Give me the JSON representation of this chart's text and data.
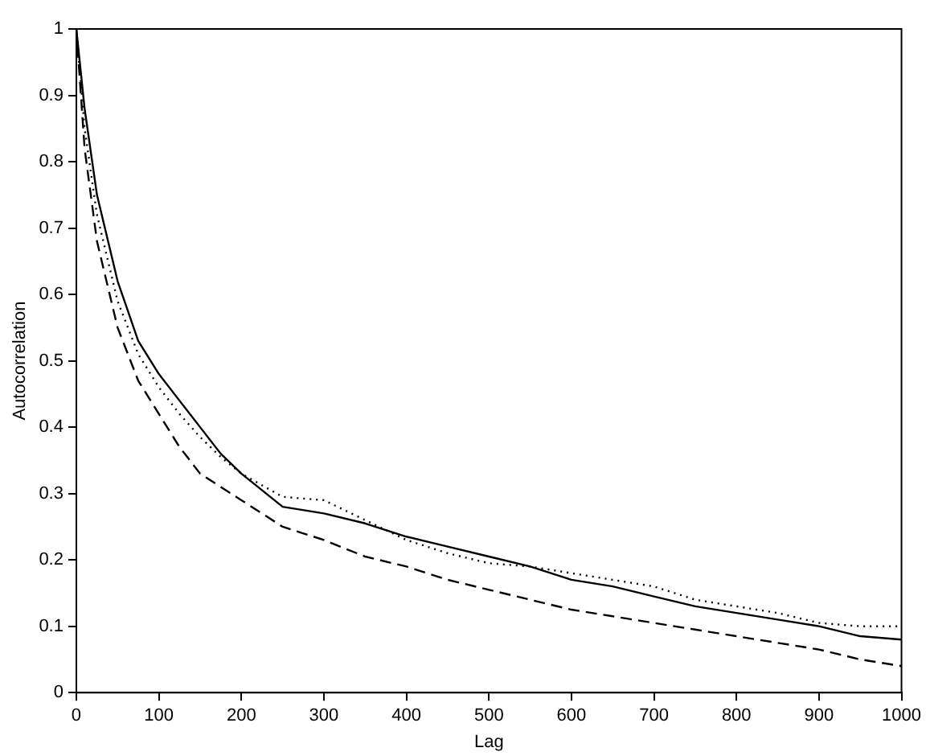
{
  "chart_data": {
    "type": "line",
    "xlabel": "Lag",
    "ylabel": "Autocorrelation",
    "xlim": [
      0,
      1000
    ],
    "ylim": [
      0,
      1
    ],
    "xticks": [
      0,
      100,
      200,
      300,
      400,
      500,
      600,
      700,
      800,
      900,
      1000
    ],
    "yticks": [
      0,
      0.1,
      0.2,
      0.3,
      0.4,
      0.5,
      0.6,
      0.7,
      0.8,
      0.9,
      1
    ],
    "grid": false,
    "legend": false,
    "marker": "none",
    "x": [
      0,
      10,
      25,
      50,
      75,
      100,
      125,
      150,
      175,
      200,
      250,
      300,
      350,
      400,
      450,
      500,
      550,
      600,
      650,
      700,
      750,
      800,
      850,
      900,
      950,
      1000
    ],
    "series": [
      {
        "color": "#000000",
        "line_style": "solid",
        "values": [
          1,
          0.88,
          0.75,
          0.62,
          0.53,
          0.48,
          0.44,
          0.4,
          0.36,
          0.33,
          0.28,
          0.27,
          0.255,
          0.235,
          0.22,
          0.205,
          0.19,
          0.17,
          0.16,
          0.145,
          0.13,
          0.12,
          0.11,
          0.1,
          0.085,
          0.08
        ]
      },
      {
        "color": "#000000",
        "line_style": "dotted",
        "values": [
          1,
          0.85,
          0.72,
          0.59,
          0.51,
          0.46,
          0.42,
          0.385,
          0.355,
          0.33,
          0.295,
          0.29,
          0.26,
          0.23,
          0.21,
          0.195,
          0.19,
          0.18,
          0.17,
          0.16,
          0.14,
          0.13,
          0.12,
          0.105,
          0.1,
          0.1
        ]
      },
      {
        "color": "#000000",
        "line_style": "dashed",
        "values": [
          1,
          0.82,
          0.68,
          0.55,
          0.47,
          0.42,
          0.37,
          0.33,
          0.31,
          0.29,
          0.25,
          0.23,
          0.205,
          0.19,
          0.17,
          0.155,
          0.14,
          0.125,
          0.115,
          0.105,
          0.095,
          0.085,
          0.075,
          0.065,
          0.05,
          0.04
        ]
      }
    ]
  }
}
